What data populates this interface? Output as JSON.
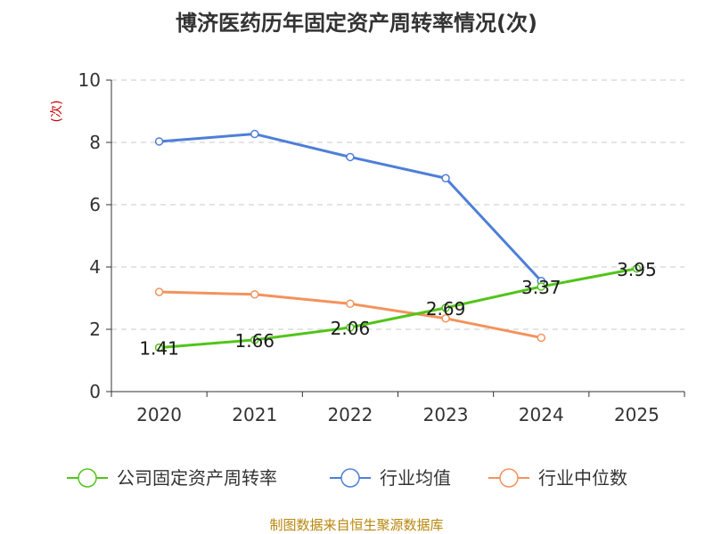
{
  "chart_data": {
    "type": "line",
    "title": "博济医药历年固定资产周转率情况(次)",
    "ylabel": "(次)",
    "xlabel": "",
    "categories": [
      "2020",
      "2021",
      "2022",
      "2023",
      "2024",
      "2025"
    ],
    "ylim": [
      0,
      10
    ],
    "yticks": [
      0,
      2,
      4,
      6,
      8,
      10
    ],
    "grid": true,
    "legend_position": "bottom",
    "series": [
      {
        "name": "公司固定资产周转率",
        "color": "#52c41a",
        "values": [
          1.41,
          1.66,
          2.06,
          2.69,
          3.37,
          3.95
        ],
        "labels": [
          "1.41",
          "1.66",
          "2.06",
          "2.69",
          "3.37",
          "3.95"
        ],
        "show_labels": true
      },
      {
        "name": "行业均值",
        "color": "#4e7fd8",
        "values": [
          8.03,
          8.27,
          7.53,
          6.85,
          3.55,
          null
        ],
        "show_labels": false
      },
      {
        "name": "行业中位数",
        "color": "#f4925c",
        "values": [
          3.2,
          3.12,
          2.82,
          2.35,
          1.73,
          null
        ],
        "show_labels": false
      }
    ],
    "source": "制图数据来自恒生聚源数据库"
  }
}
